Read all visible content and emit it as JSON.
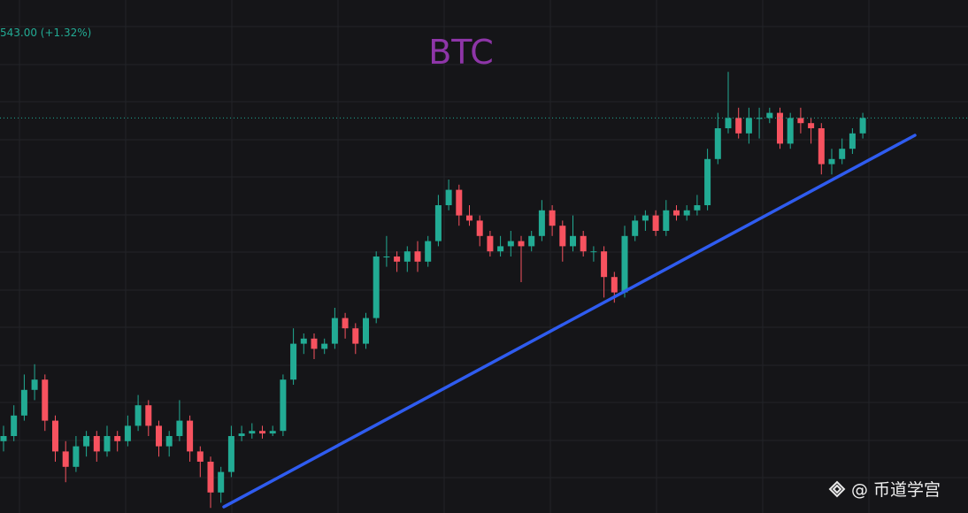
{
  "chart_data": {
    "type": "candlestick",
    "title": "BTC",
    "price_label": "543.00 (+1.32%)",
    "watermark": "@ 币道学宫",
    "up_color": "#22ab94",
    "down_color": "#f7525f",
    "ylim": [
      0,
      100
    ],
    "open": [
      14,
      15,
      19,
      24,
      26,
      18,
      12,
      9,
      13,
      15,
      12,
      15,
      14,
      17,
      21,
      17,
      13,
      15,
      18,
      12,
      10,
      4,
      8,
      15,
      15.5,
      16,
      15.5,
      16,
      26,
      33,
      34,
      32,
      33,
      38,
      36,
      33,
      38,
      50,
      50,
      49,
      51,
      49,
      53,
      60,
      63,
      58,
      57,
      54,
      51,
      52,
      53,
      52,
      54,
      59,
      56,
      52,
      54,
      51,
      51,
      46,
      43,
      54,
      57,
      58,
      55,
      59,
      58,
      59,
      60,
      69,
      75,
      77,
      74,
      77,
      77,
      78,
      72,
      77,
      76,
      75,
      68,
      69,
      71,
      74
    ],
    "high": [
      17,
      21,
      27,
      29,
      27,
      19,
      14,
      15,
      16,
      16,
      17,
      16,
      19,
      23,
      22,
      18,
      16,
      22,
      19,
      13,
      11,
      9,
      17,
      17,
      17.5,
      17,
      17,
      27,
      36,
      35,
      35,
      34,
      40,
      39,
      37,
      39,
      51,
      54,
      51,
      52,
      53,
      54,
      62,
      65,
      64,
      60,
      58,
      55,
      54,
      55,
      54,
      55,
      61,
      60,
      57,
      58,
      55,
      52,
      52,
      47,
      56,
      58,
      59,
      59,
      61,
      60,
      60,
      62,
      71,
      78,
      86,
      79,
      79,
      79,
      79,
      79,
      78,
      79,
      77,
      76,
      71,
      73,
      75,
      78
    ],
    "low": [
      12,
      14,
      18,
      22,
      16,
      10,
      6,
      8,
      11,
      10,
      11,
      12,
      13,
      16,
      15,
      11,
      11,
      14,
      10,
      7,
      1,
      2,
      7,
      14,
      14.5,
      14.5,
      15,
      15,
      25,
      31,
      30,
      31,
      32,
      34,
      31,
      32,
      37,
      48,
      47,
      47,
      47,
      48,
      52,
      59,
      56,
      56,
      52,
      50,
      50,
      50,
      45,
      51,
      53,
      54,
      49,
      51,
      50,
      49,
      42,
      41,
      42,
      53,
      55,
      54,
      54,
      57,
      57,
      58,
      59,
      68,
      74,
      73,
      72,
      73,
      76,
      71,
      71,
      74,
      72,
      66,
      66,
      68,
      70,
      73
    ],
    "close": [
      15,
      19,
      24,
      26,
      18,
      12,
      9,
      13,
      15,
      12,
      15,
      14,
      17,
      21,
      17,
      13,
      15,
      18,
      12,
      10,
      4,
      8,
      15,
      15.5,
      16,
      15.5,
      16,
      26,
      33,
      34,
      32,
      33,
      38,
      36,
      33,
      38,
      50,
      50,
      49,
      51,
      49,
      53,
      60,
      63,
      58,
      57,
      54,
      51,
      52,
      53,
      52,
      54,
      59,
      56,
      52,
      54,
      51,
      51,
      46,
      43,
      54,
      57,
      58,
      55,
      59,
      58,
      59,
      60,
      69,
      75,
      77,
      74,
      77,
      77,
      78,
      72,
      77,
      76,
      75,
      68,
      69,
      71,
      74,
      77
    ]
  }
}
